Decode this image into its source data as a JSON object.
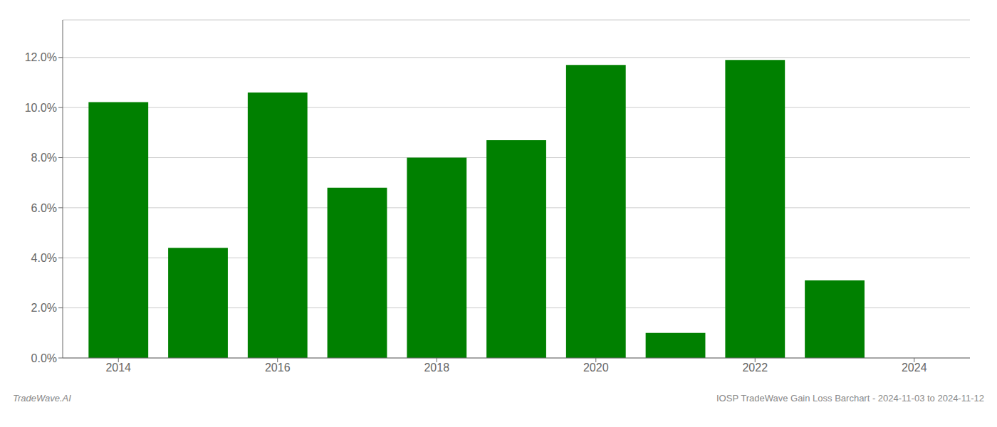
{
  "chart_data": {
    "type": "bar",
    "x": [
      2014,
      2015,
      2016,
      2017,
      2018,
      2019,
      2020,
      2021,
      2022,
      2023
    ],
    "values": [
      0.1022,
      0.044,
      0.106,
      0.068,
      0.08,
      0.087,
      0.117,
      0.01,
      0.119,
      0.031
    ],
    "color": "#008000",
    "xlim": [
      2013.3,
      2024.7
    ],
    "xticks": [
      2014,
      2016,
      2018,
      2020,
      2022,
      2024
    ],
    "ylim": [
      0,
      0.135
    ],
    "yticks": [
      {
        "value": 0.0,
        "label": "0.0%"
      },
      {
        "value": 0.02,
        "label": "2.0%"
      },
      {
        "value": 0.04,
        "label": "4.0%"
      },
      {
        "value": 0.06,
        "label": "6.0%"
      },
      {
        "value": 0.08,
        "label": "8.0%"
      },
      {
        "value": 0.1,
        "label": "10.0%"
      },
      {
        "value": 0.12,
        "label": "12.0%"
      }
    ],
    "grid": true,
    "annotations": [
      "TradeWave.AI",
      "IOSP TradeWave Gain Loss Barchart - 2024-11-03 to 2024-11-12"
    ]
  }
}
